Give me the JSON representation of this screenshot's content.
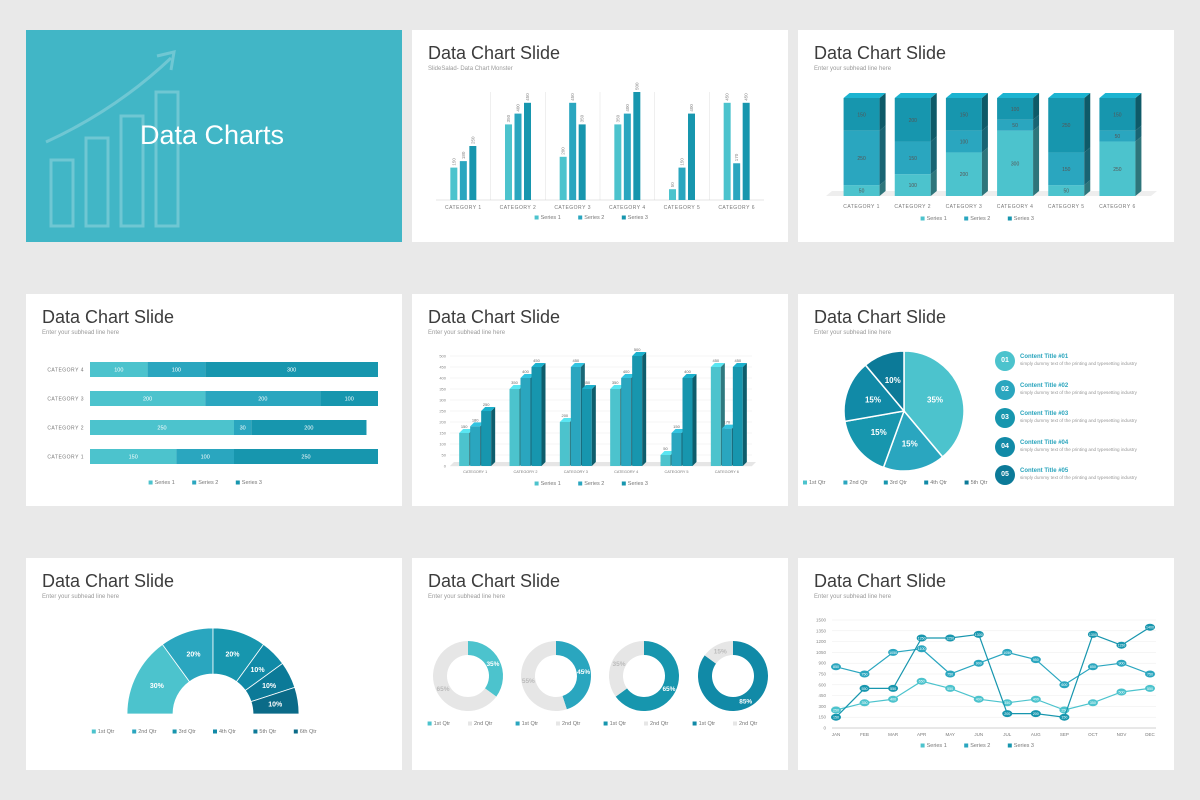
{
  "colors": {
    "c1": "#4cc3cd",
    "c2": "#2aa6bf",
    "c3": "#1796ae",
    "c4": "#118aa7",
    "c5": "#0c7a98",
    "c6": "#0b6b88",
    "grey": "#e6e6e6"
  },
  "cover": {
    "title": "Data Charts"
  },
  "slides": [
    {
      "title": "Data Chart Slide",
      "subtitle": "SlideSalad- Data Chart Monster"
    },
    {
      "title": "Data Chart Slide",
      "subtitle": "Enter your subhead line here"
    },
    {
      "title": "Data Chart Slide",
      "subtitle": "Enter your subhead line here"
    },
    {
      "title": "Data Chart Slide",
      "subtitle": "Enter your subhead line here"
    },
    {
      "title": "Data Chart Slide",
      "subtitle": "Enter your subhead line here"
    },
    {
      "title": "Data Chart Slide",
      "subtitle": "Enter your subhead line here"
    },
    {
      "title": "Data Chart Slide",
      "subtitle": "Enter your subhead line here"
    },
    {
      "title": "Data Chart Slide",
      "subtitle": "Enter your subhead line here"
    }
  ],
  "bullets": [
    {
      "num": "01",
      "title": "Content Title #01",
      "text": "simply dummy text of the printing and typesetting industry"
    },
    {
      "num": "02",
      "title": "Content Title #02",
      "text": "simply dummy text of the printing and typesetting industry"
    },
    {
      "num": "03",
      "title": "Content Title #03",
      "text": "simply dummy text of the printing and typesetting industry"
    },
    {
      "num": "04",
      "title": "Content Title #04",
      "text": "simply dummy text of the printing and typesetting industry"
    },
    {
      "num": "05",
      "title": "Content Title #05",
      "text": "simply dummy text of the printing and typesetting industry"
    }
  ],
  "chart_data": [
    {
      "type": "bar",
      "slide": 1,
      "categories": [
        "CATEGORY 1",
        "CATEGORY 2",
        "CATEGORY 3",
        "CATEGORY 4",
        "CATEGORY 5",
        "CATEGORY 6"
      ],
      "series": [
        {
          "name": "Series 1",
          "values": [
            150,
            350,
            200,
            350,
            50,
            450
          ]
        },
        {
          "name": "Series 2",
          "values": [
            180,
            400,
            450,
            400,
            150,
            170
          ]
        },
        {
          "name": "Series 3",
          "values": [
            250,
            450,
            350,
            500,
            400,
            450
          ]
        }
      ],
      "ylim": [
        0,
        500
      ]
    },
    {
      "type": "bar",
      "stacked": true,
      "style": "3d",
      "slide": 2,
      "categories": [
        "CATEGORY 1",
        "CATEGORY 2",
        "CATEGORY 3",
        "CATEGORY 4",
        "CATEGORY 5",
        "CATEGORY 6"
      ],
      "series": [
        {
          "name": "Series 1",
          "values": [
            50,
            100,
            200,
            300,
            50,
            250
          ]
        },
        {
          "name": "Series 2",
          "values": [
            250,
            150,
            100,
            50,
            150,
            50
          ]
        },
        {
          "name": "Series 3",
          "values": [
            150,
            200,
            150,
            100,
            250,
            150
          ]
        }
      ]
    },
    {
      "type": "bar",
      "orientation": "horizontal",
      "stacked": true,
      "slide": 3,
      "categories": [
        "CATEGORY 4",
        "CATEGORY 3",
        "CATEGORY 2",
        "CATEGORY 1"
      ],
      "series": [
        {
          "name": "Series 1",
          "values": [
            100,
            200,
            250,
            150
          ]
        },
        {
          "name": "Series 2",
          "values": [
            100,
            200,
            30,
            100
          ]
        },
        {
          "name": "Series 3",
          "values": [
            300,
            100,
            200,
            250
          ]
        }
      ]
    },
    {
      "type": "bar",
      "style": "3d",
      "slide": 4,
      "categories": [
        "CATEGORY 1",
        "CATEGORY 2",
        "CATEGORY 3",
        "CATEGORY 4",
        "CATEGORY 5",
        "CATEGORY 6"
      ],
      "series": [
        {
          "name": "Series 1",
          "values": [
            150,
            350,
            200,
            350,
            50,
            450
          ]
        },
        {
          "name": "Series 2",
          "values": [
            180,
            400,
            450,
            400,
            150,
            170
          ]
        },
        {
          "name": "Series 3",
          "values": [
            250,
            450,
            350,
            500,
            400,
            450
          ]
        }
      ],
      "yticks": [
        "0",
        "50",
        "100",
        "150",
        "200",
        "250",
        "300",
        "350",
        "400",
        "450",
        "500"
      ],
      "ylim": [
        0,
        500
      ]
    },
    {
      "type": "pie",
      "slide": 5,
      "labels": [
        "1st Qtr",
        "2nd Qtr",
        "3rd Qtr",
        "4th Qtr",
        "5th Qtr"
      ],
      "values": [
        35,
        15,
        15,
        15,
        10
      ],
      "value_labels": [
        "35%",
        "15%",
        "15%",
        "15%",
        "10%"
      ]
    },
    {
      "type": "pie",
      "subtype": "half-donut",
      "slide": 6,
      "labels": [
        "1st Qtr",
        "2nd Qtr",
        "3rd Qtr",
        "4th Qtr",
        "5th Qtr",
        "6th Qtr"
      ],
      "values": [
        30,
        20,
        20,
        10,
        10,
        10
      ],
      "value_labels": [
        "30%",
        "20%",
        "20%",
        "10%",
        "10%",
        "10%"
      ]
    },
    {
      "type": "pie",
      "subtype": "donut",
      "slide": 7,
      "labels": [
        "1st Qtr",
        "2nd Qtr"
      ],
      "donuts": [
        {
          "values": [
            35,
            65
          ],
          "value_labels": [
            "35%",
            "65%"
          ]
        },
        {
          "values": [
            45,
            55
          ],
          "value_labels": [
            "45%",
            "55%"
          ]
        },
        {
          "values": [
            65,
            35
          ],
          "value_labels": [
            "65%",
            "35%"
          ]
        },
        {
          "values": [
            85,
            15
          ],
          "value_labels": [
            "85%",
            "15%"
          ]
        }
      ]
    },
    {
      "type": "line",
      "slide": 8,
      "categories": [
        "JAN",
        "FEB",
        "MAR",
        "APR",
        "MAY",
        "JUN",
        "JUL",
        "AUG",
        "SEP",
        "OCT",
        "NOV",
        "DEC"
      ],
      "yticks": [
        "0",
        "150",
        "300",
        "450",
        "600",
        "750",
        "900",
        "1050",
        "1200",
        "1350",
        "1500"
      ],
      "ylim": [
        0,
        1500
      ],
      "series": [
        {
          "name": "Series 1",
          "values": [
            250,
            350,
            400,
            650,
            550,
            400,
            350,
            400,
            250,
            350,
            500,
            550
          ]
        },
        {
          "name": "Series 2",
          "values": [
            850,
            750,
            1050,
            1100,
            750,
            900,
            1050,
            950,
            600,
            850,
            900,
            750
          ]
        },
        {
          "name": "Series 3",
          "values": [
            150,
            550,
            550,
            1250,
            1250,
            1300,
            200,
            200,
            150,
            1300,
            1150,
            1400
          ]
        }
      ],
      "point_labels": [
        [
          "250",
          "350",
          "400",
          "650",
          "550",
          "400",
          "350",
          "400",
          "250",
          "350",
          "500",
          "550"
        ],
        [
          "850",
          "750",
          "1050",
          "1100",
          "750",
          "900",
          "1050",
          "950",
          "600",
          "850",
          "900",
          "750"
        ],
        [
          "150",
          "550",
          "550",
          "1250",
          "1250",
          "1300",
          "200",
          "200",
          "150",
          "1300",
          "1150",
          "1400"
        ]
      ]
    }
  ]
}
